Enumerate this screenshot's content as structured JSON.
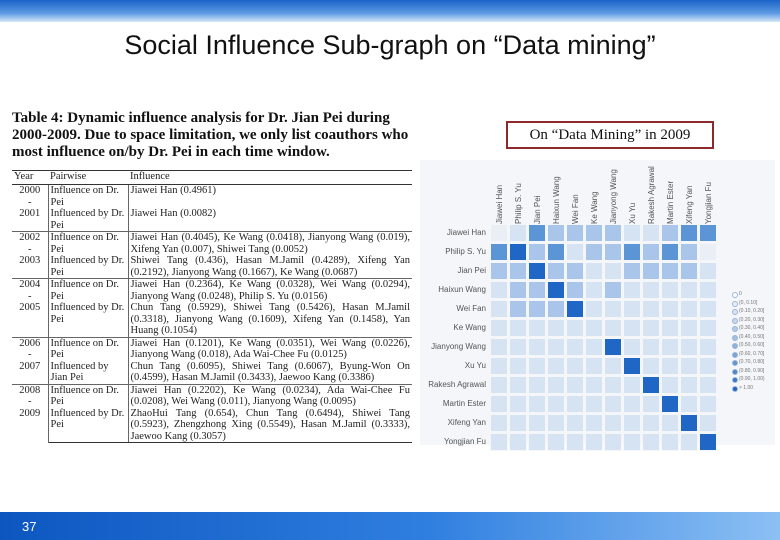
{
  "slide": {
    "title": "Social Influence Sub-graph on “Data mining”",
    "page_number": "37",
    "box_label": "On “Data Mining” in 2009"
  },
  "table": {
    "caption_bold": "Table 4: Dynamic influence analysis for Dr. Jian Pei during 2000-2009. Due to space limitation, we only list coauthors who most influence on/by Dr. Pei in each time window.",
    "headers": [
      "Year",
      "Pairwise",
      "Influence"
    ],
    "blocks": [
      {
        "year": [
          "2000",
          "-",
          "2001"
        ],
        "rows": [
          {
            "pairwise": "Influence on Dr. Pei",
            "influence": "Jiawei Han (0.4961)"
          },
          {
            "pairwise": "Influenced by Dr. Pei",
            "influence": "Jiawei Han (0.0082)"
          }
        ]
      },
      {
        "year": [
          "2002",
          "-",
          "2003"
        ],
        "rows": [
          {
            "pairwise": "Influence on Dr. Pei",
            "influence": "Jiawei Han (0.4045), Ke Wang (0.0418), Jianyong Wang (0.019), Xifeng Yan (0.007), Shiwei Tang (0.0052)"
          },
          {
            "pairwise": "Influenced by Dr. Pei",
            "influence": "Shiwei Tang (0.436), Hasan M.Jamil (0.4289), Xifeng Yan (0.2192), Jianyong Wang (0.1667), Ke Wang (0.0687)"
          }
        ]
      },
      {
        "year": [
          "2004",
          "-",
          "2005"
        ],
        "rows": [
          {
            "pairwise": "Influence on Dr. Pei",
            "influence": "Jiawei Han (0.2364), Ke Wang (0.0328), Wei Wang (0.0294), Jianyong Wang (0.0248), Philip S. Yu (0.0156)"
          },
          {
            "pairwise": "Influenced by Dr. Pei",
            "influence": "Chun Tang (0.5929), Shiwei Tang (0.5426), Hasan M.Jamil (0.3318), Jianyong Wang (0.1609), Xifeng Yan (0.1458), Yan Huang (0.1054)"
          }
        ]
      },
      {
        "year": [
          "2006",
          "-",
          "2007"
        ],
        "rows": [
          {
            "pairwise": "Influence on Dr. Pei",
            "influence": "Jiawei Han (0.1201), Ke Wang (0.0351), Wei Wang (0.0226), Jianyong Wang (0.018), Ada Wai-Chee Fu (0.0125)"
          },
          {
            "pairwise": "Influenced by Jian Pei",
            "influence": "Chun Tang (0.6095), Shiwei Tang (0.6067), Byung-Won On (0.4599), Hasan M.Jamil (0.3433), Jaewoo Kang (0.3386)"
          }
        ]
      },
      {
        "year": [
          "2008",
          "-",
          "2009"
        ],
        "rows": [
          {
            "pairwise": "Influence on Dr. Pei",
            "influence": "Jiawei Han (0.2202), Ke Wang (0.0234), Ada Wai-Chee Fu (0.0208), Wei Wang (0.011), Jianyong Wang (0.0095)"
          },
          {
            "pairwise": "Influenced by Dr. Pei",
            "influence": "ZhaoHui Tang (0.654), Chun Tang (0.6494), Shiwei Tang (0.5923), Zhengzhong Xing (0.5549), Hasan M.Jamil (0.3333), Jaewoo Kang (0.3057)"
          }
        ]
      }
    ]
  },
  "heatmap": {
    "row_labels": [
      "Jiawei Han",
      "Philip S. Yu",
      "Jian Pei",
      "Haixun Wang",
      "Wei Fan",
      "Ke Wang",
      "Jianyong Wang",
      "Xu Yu",
      "Rakesh Agrawal",
      "Martin Ester",
      "Xifeng Yan",
      "Yongjian Fu"
    ],
    "col_labels": [
      "Jiawei Han",
      "Philip S. Yu",
      "Jian Pei",
      "Haixun Wang",
      "Wei Fan",
      "Ke Wang",
      "Jianyong Wang",
      "Xu Yu",
      "Rakesh Agrawal",
      "Martin Ester",
      "Xifeng Yan",
      "Yongjian Fu"
    ],
    "colors": {
      "dark": "#2066c4",
      "mid": "#5b95d6",
      "light": "#a9c6ea",
      "faint": "#d6e3f3",
      "empty": "#eaeff6"
    },
    "levels": [
      [
        0,
        1,
        3,
        2,
        2,
        2,
        2,
        1,
        1,
        2,
        3,
        3
      ],
      [
        3,
        4,
        2,
        3,
        1,
        2,
        2,
        3,
        2,
        3,
        2,
        0
      ],
      [
        2,
        2,
        4,
        2,
        2,
        1,
        1,
        2,
        2,
        2,
        2,
        1
      ],
      [
        1,
        2,
        2,
        4,
        2,
        1,
        2,
        1,
        1,
        1,
        1,
        1
      ],
      [
        1,
        2,
        2,
        2,
        4,
        1,
        1,
        1,
        1,
        1,
        1,
        1
      ],
      [
        1,
        1,
        1,
        1,
        1,
        1,
        1,
        1,
        1,
        1,
        1,
        1
      ],
      [
        1,
        1,
        1,
        1,
        1,
        1,
        4,
        1,
        1,
        1,
        1,
        1
      ],
      [
        1,
        1,
        1,
        1,
        1,
        1,
        1,
        4,
        1,
        1,
        1,
        1
      ],
      [
        1,
        1,
        1,
        1,
        1,
        1,
        1,
        1,
        4,
        1,
        1,
        1
      ],
      [
        1,
        1,
        1,
        1,
        1,
        1,
        1,
        1,
        1,
        4,
        1,
        1
      ],
      [
        1,
        1,
        1,
        1,
        1,
        1,
        1,
        1,
        1,
        1,
        4,
        1
      ],
      [
        1,
        1,
        1,
        1,
        1,
        1,
        1,
        1,
        1,
        1,
        1,
        4
      ]
    ],
    "legend": [
      "0",
      "(0, 0.10]",
      "(0.10, 0.20]",
      "(0.20, 0.30]",
      "(0.30, 0.40]",
      "(0.40, 0.50]",
      "(0.50, 0.60]",
      "(0.60, 0.70]",
      "(0.70, 0.80]",
      "(0.80, 0.90]",
      "(0.90, 1.00)",
      "> 1.00"
    ]
  }
}
